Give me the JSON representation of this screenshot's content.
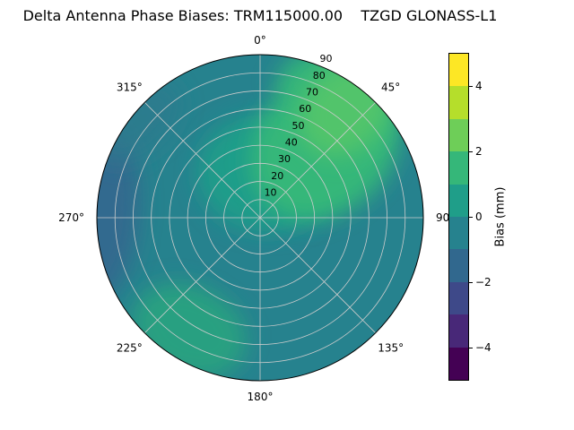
{
  "title": "Delta Antenna Phase Biases: TRM115000.00    TZGD GLONASS-L1",
  "chart_data": {
    "type": "heatmap",
    "projection": "polar",
    "title": "Delta Antenna Phase Biases: TRM115000.00    TZGD GLONASS-L1",
    "angular_ticks": [
      {
        "deg": 0,
        "label": "0°"
      },
      {
        "deg": 45,
        "label": "45°"
      },
      {
        "deg": 90,
        "label": "90"
      },
      {
        "deg": 135,
        "label": "135°"
      },
      {
        "deg": 180,
        "label": "180°"
      },
      {
        "deg": 225,
        "label": "225°"
      },
      {
        "deg": 270,
        "label": "270°"
      },
      {
        "deg": 315,
        "label": "315°"
      }
    ],
    "radial_ticks": [
      "10",
      "20",
      "30",
      "40",
      "50",
      "60",
      "70",
      "80",
      "90"
    ],
    "radial_axis": {
      "min": 0,
      "max": 90,
      "label_angle_deg": 22.5
    },
    "colorbar": {
      "label": "Bias (mm)",
      "range": [
        -5,
        5
      ],
      "ticks": [
        {
          "v": 4,
          "label": "4"
        },
        {
          "v": 2,
          "label": "2"
        },
        {
          "v": 0,
          "label": "0"
        },
        {
          "v": -2,
          "label": "−2"
        },
        {
          "v": -4,
          "label": "−4"
        }
      ],
      "level_colors_bottom_to_top": [
        "#440154",
        "#482878",
        "#3e4989",
        "#31688e",
        "#26828e",
        "#1f9e89",
        "#35b779",
        "#6ece58",
        "#b5de2b",
        "#fde725"
      ]
    },
    "background_bias_mm": 0.5,
    "features": [
      {
        "azimuth_deg": 45,
        "radial": 60,
        "bias_mm": 2,
        "description": "broad positive (green) lobe in upper-right quadrant"
      },
      {
        "azimuth_deg": 0,
        "radial": 25,
        "bias_mm": 1,
        "description": "mild positive teal-green region around center/top"
      },
      {
        "azimuth_deg": 270,
        "radial": 85,
        "bias_mm": -2,
        "description": "negative (dark blue) band along western rim"
      },
      {
        "azimuth_deg": 315,
        "radial": 85,
        "bias_mm": -1,
        "description": "slightly negative patch on upper-left rim"
      },
      {
        "azimuth_deg": 210,
        "radial": 75,
        "bias_mm": 1,
        "description": "mild positive green patch lower-left near rim"
      },
      {
        "azimuth_deg": 135,
        "radial": 50,
        "bias_mm": 0,
        "description": "near-zero teal background over most of disk"
      }
    ],
    "render": {
      "base_color": "#26828e",
      "grid_color": "#cccccc",
      "outline_color": "#000000",
      "blobs": [
        {
          "az": 10,
          "rf": 0.28,
          "rx": 78,
          "ry": 66,
          "rot": 0,
          "color": "#1f9e89",
          "opacity": 0.95
        },
        {
          "az": 42,
          "rf": 0.6,
          "rx": 92,
          "ry": 74,
          "rot": -45,
          "color": "#35b779",
          "opacity": 1
        },
        {
          "az": 22,
          "rf": 0.93,
          "rx": 48,
          "ry": 32,
          "rot": -25,
          "color": "#35b779",
          "opacity": 0.9
        },
        {
          "az": 38,
          "rf": 0.85,
          "rx": 58,
          "ry": 46,
          "rot": -50,
          "color": "#52c56a",
          "opacity": 0.95
        },
        {
          "az": 272,
          "rf": 0.97,
          "rx": 42,
          "ry": 98,
          "rot": 4,
          "color": "#31688e",
          "opacity": 0.95
        },
        {
          "az": 308,
          "rf": 0.95,
          "rx": 32,
          "ry": 56,
          "rot": 48,
          "color": "#2d7a8e",
          "opacity": 0.75
        },
        {
          "az": 212,
          "rf": 0.82,
          "rx": 66,
          "ry": 50,
          "rot": 25,
          "color": "#2aa47f",
          "opacity": 0.9
        }
      ]
    }
  }
}
